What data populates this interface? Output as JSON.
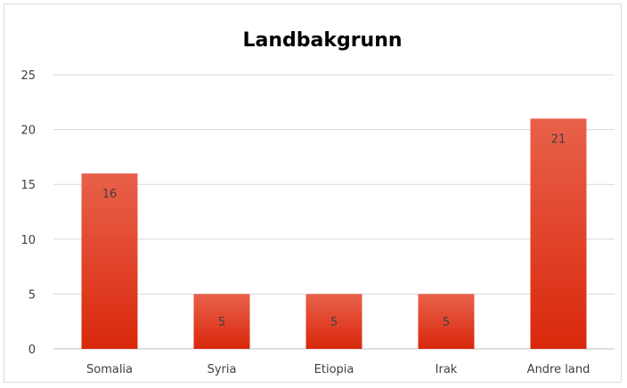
{
  "chart_data": {
    "type": "bar",
    "title": "Landbakgrunn",
    "categories": [
      "Somalia",
      "Syria",
      "Etiopia",
      "Irak",
      "Andre land"
    ],
    "values": [
      16,
      5,
      5,
      5,
      21
    ],
    "data_labels": [
      "16",
      "5",
      "5",
      "5",
      "21"
    ],
    "xlabel": "",
    "ylabel": "",
    "ylim": [
      0,
      25
    ],
    "yticks": [
      0,
      5,
      10,
      15,
      20,
      25
    ],
    "grid": true,
    "legend": "none",
    "colors": {
      "bar_top": "#e8614a",
      "bar_bottom": "#d9280c",
      "grid": "#d9d9d9",
      "axis": "#bfbfbf"
    }
  }
}
